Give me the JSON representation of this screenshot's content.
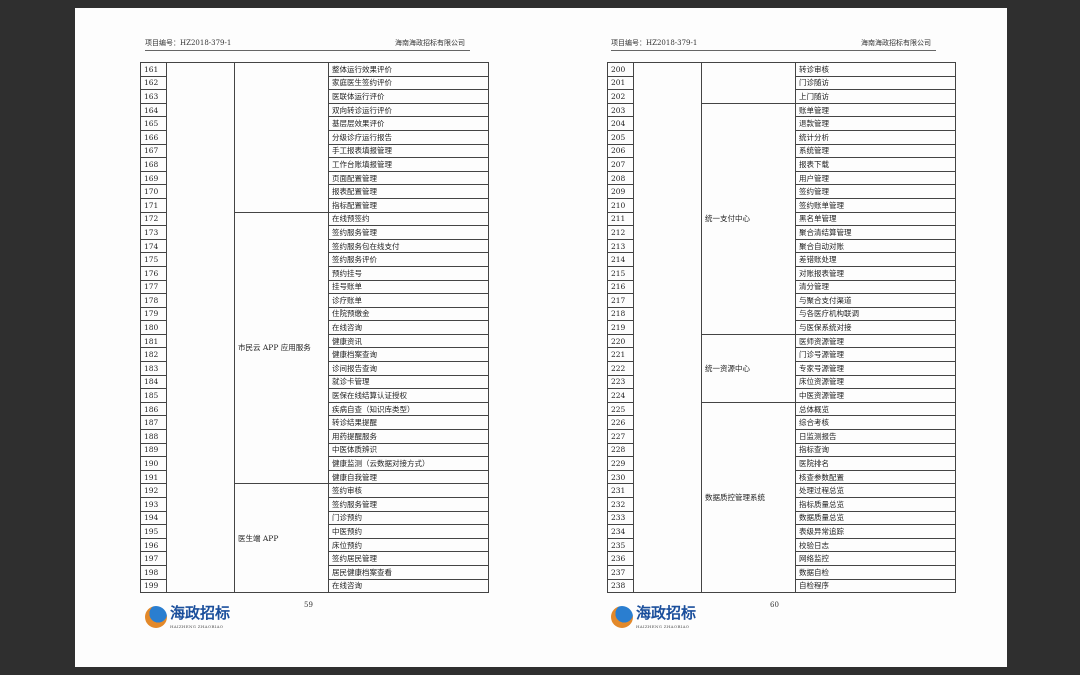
{
  "pages": [
    {
      "header_left": "项目编号：HZ2018-379-1",
      "header_right": "海南海政招标有限公司",
      "page_number": "59",
      "logo_text": "海政招标",
      "logo_sub": "HAIZHENG ZHAOBIAO",
      "groups": [
        {
          "category": "",
          "rows": [
            [
              "161",
              "整体运行效果评价"
            ],
            [
              "162",
              "家庭医生签约评价"
            ],
            [
              "163",
              "医联体运行评价"
            ],
            [
              "164",
              "双向转诊运行评价"
            ],
            [
              "165",
              "基层层效果评价"
            ],
            [
              "166",
              "分级诊疗运行报告"
            ],
            [
              "167",
              "手工报表填报管理"
            ],
            [
              "168",
              "工作台账填报管理"
            ],
            [
              "169",
              "页面配置管理"
            ],
            [
              "170",
              "报表配置管理"
            ],
            [
              "171",
              "指标配置管理"
            ]
          ]
        },
        {
          "category": "市民云 APP 应用服务",
          "rows": [
            [
              "172",
              "在线预签约"
            ],
            [
              "173",
              "签约服务管理"
            ],
            [
              "174",
              "签约服务包在线支付"
            ],
            [
              "175",
              "签约服务评价"
            ],
            [
              "176",
              "预约挂号"
            ],
            [
              "177",
              "挂号账单"
            ],
            [
              "178",
              "诊疗账单"
            ],
            [
              "179",
              "住院预缴金"
            ],
            [
              "180",
              "在线咨询"
            ],
            [
              "181",
              "健康资讯"
            ],
            [
              "182",
              "健康档案查询"
            ],
            [
              "183",
              "诊间报告查询"
            ],
            [
              "184",
              "就诊卡管理"
            ],
            [
              "185",
              "医保在线结算认证授权"
            ],
            [
              "186",
              "疾病自查（知识库类型）"
            ],
            [
              "187",
              "转诊结果提醒"
            ],
            [
              "188",
              "用药提醒服务"
            ],
            [
              "189",
              "中医体质辨识"
            ],
            [
              "190",
              "健康监测（云数据对接方式）"
            ],
            [
              "191",
              "健康自我管理"
            ]
          ]
        },
        {
          "category": "医生端 APP",
          "rows": [
            [
              "192",
              "签约审核"
            ],
            [
              "193",
              "签约服务管理"
            ],
            [
              "194",
              "门诊预约"
            ],
            [
              "195",
              "中医预约"
            ],
            [
              "196",
              "床位预约"
            ],
            [
              "197",
              "签约居民管理"
            ],
            [
              "198",
              "居民健康档案查看"
            ],
            [
              "199",
              "在线咨询"
            ]
          ]
        }
      ]
    },
    {
      "header_left": "项目编号：HZ2018-379-1",
      "header_right": "海南海政招标有限公司",
      "page_number": "60",
      "logo_text": "海政招标",
      "logo_sub": "HAIZHENG ZHAOBIAO",
      "groups": [
        {
          "category": "",
          "rows": [
            [
              "200",
              "转诊审核"
            ],
            [
              "201",
              "门诊随访"
            ],
            [
              "202",
              "上门随访"
            ]
          ]
        },
        {
          "category": "统一支付中心",
          "rows": [
            [
              "203",
              "账单管理"
            ],
            [
              "204",
              "退款管理"
            ],
            [
              "205",
              "统计分析"
            ],
            [
              "206",
              "系统管理"
            ],
            [
              "207",
              "报表下载"
            ],
            [
              "208",
              "用户管理"
            ],
            [
              "209",
              "签约管理"
            ],
            [
              "210",
              "签约账单管理"
            ],
            [
              "211",
              "黑名单管理"
            ],
            [
              "212",
              "聚合清结算管理"
            ],
            [
              "213",
              "聚合自动对账"
            ],
            [
              "214",
              "差错账处理"
            ],
            [
              "215",
              "对账报表管理"
            ],
            [
              "216",
              "清分管理"
            ],
            [
              "217",
              "与聚合支付渠道"
            ],
            [
              "218",
              "与各医疗机构联调"
            ],
            [
              "219",
              "与医保系统对接"
            ]
          ]
        },
        {
          "category": "统一资源中心",
          "rows": [
            [
              "220",
              "医师资源管理"
            ],
            [
              "221",
              "门诊号源管理"
            ],
            [
              "222",
              "专家号源管理"
            ],
            [
              "223",
              "床位资源管理"
            ],
            [
              "224",
              "中医资源管理"
            ]
          ]
        },
        {
          "category": "数据质控管理系统",
          "rows": [
            [
              "225",
              "总体概览"
            ],
            [
              "226",
              "综合考核"
            ],
            [
              "227",
              "日监测报告"
            ],
            [
              "228",
              "指标查询"
            ],
            [
              "229",
              "医院排名"
            ],
            [
              "230",
              "核查参数配置"
            ],
            [
              "231",
              "处理过程总览"
            ],
            [
              "232",
              "指标质量总览"
            ],
            [
              "233",
              "数据质量总览"
            ],
            [
              "234",
              "表级异常追踪"
            ],
            [
              "235",
              "校验日志"
            ],
            [
              "236",
              "网络监控"
            ],
            [
              "237",
              "数据自检"
            ],
            [
              "238",
              "自检程序"
            ]
          ]
        }
      ]
    }
  ]
}
